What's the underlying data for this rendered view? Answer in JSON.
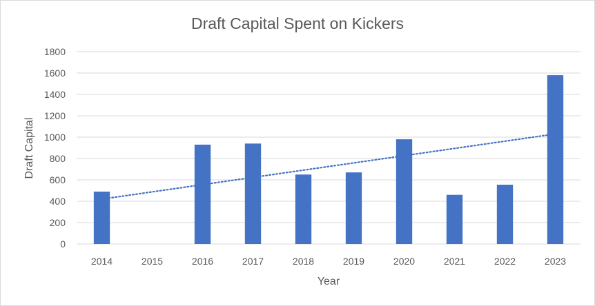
{
  "chart_data": {
    "type": "bar",
    "title": "Draft Capital Spent on Kickers",
    "xlabel": "Year",
    "ylabel": "Draft Capital",
    "categories": [
      "2014",
      "2015",
      "2016",
      "2017",
      "2018",
      "2019",
      "2020",
      "2021",
      "2022",
      "2023"
    ],
    "values": [
      490,
      0,
      930,
      940,
      650,
      670,
      980,
      460,
      555,
      1580
    ],
    "ylim": [
      0,
      1800
    ],
    "yticks": [
      0,
      200,
      400,
      600,
      800,
      1000,
      1200,
      1400,
      1600,
      1800
    ],
    "grid": true,
    "legend": "none",
    "trendline": {
      "type": "linear",
      "style": "dotted",
      "start": 420,
      "end": 1030
    },
    "colors": {
      "bar": "#4472c4",
      "trendline": "#4472c4",
      "grid": "#d9d9d9",
      "text": "#595959"
    }
  }
}
